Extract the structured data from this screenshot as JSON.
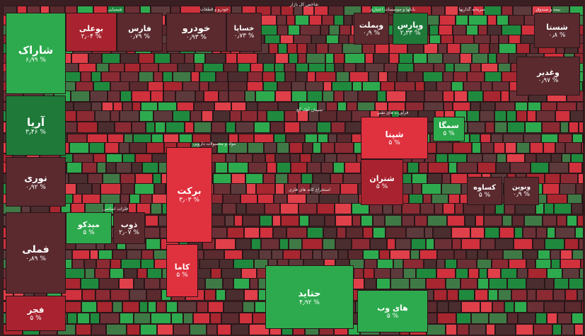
{
  "sectors": [
    {
      "label": "شیمیایی"
    },
    {
      "label": "خودرو و قطعات"
    },
    {
      "label": "شاخص کل بازار"
    },
    {
      "label": "بانکها و موسسات اعتباری"
    },
    {
      "label": "سرمایه گذاریها"
    },
    {
      "label": "بیمه و صندوق"
    },
    {
      "label": "فلزات اساسی"
    },
    {
      "label": "فرآورده های نفتی"
    },
    {
      "label": "سیمان آهک گچ"
    },
    {
      "label": "استخراج کانه های فلزی"
    },
    {
      "label": "مواد و محصولات دارویی"
    }
  ],
  "tiles": [
    {
      "label": "شاراک",
      "change": "۶٫۹۹ %"
    },
    {
      "label": "آریا",
      "change": "۳٫۴۶ %"
    },
    {
      "label": "نوری",
      "change": "۰٫۹۲ %"
    },
    {
      "label": "بوعلی",
      "change": "۲٫۰۴ %"
    },
    {
      "label": "فارس",
      "change": "۰٫۷۹ %"
    },
    {
      "label": "فملی",
      "change": "۰٫۸۹ %"
    },
    {
      "label": "فجر",
      "change": "۵ %"
    },
    {
      "label": "میدکو",
      "change": "۵ %"
    },
    {
      "label": "ذوب",
      "change": "۲٫۰۷ %"
    },
    {
      "label": "خودرو",
      "change": "۰٫۹۳ %"
    },
    {
      "label": "خساپا",
      "change": "۰٫۷۳ %"
    },
    {
      "label": "وبملت",
      "change": "۰٫۹ %"
    },
    {
      "label": "وپارس",
      "change": "۲٫۳۳ %"
    },
    {
      "label": "شستا",
      "change": "۰٫۸ %"
    },
    {
      "label": "وغدیر",
      "change": "۰٫۹۷ %"
    },
    {
      "label": "شپنا",
      "change": "۵ %"
    },
    {
      "label": "شتران",
      "change": "۵ %"
    },
    {
      "label": "برکت",
      "change": "۳٫۰۳ %"
    },
    {
      "label": "کاما",
      "change": "۵ %"
    },
    {
      "label": "حتاید",
      "change": "۴٫۹۲ %"
    },
    {
      "label": "سمگا",
      "change": "۵ %"
    },
    {
      "label": "کساوه",
      "change": "۵ %"
    },
    {
      "label": "ونوین",
      "change": "۰٫۹ %"
    },
    {
      "label": "های وب",
      "change": "۵ %"
    }
  ]
}
